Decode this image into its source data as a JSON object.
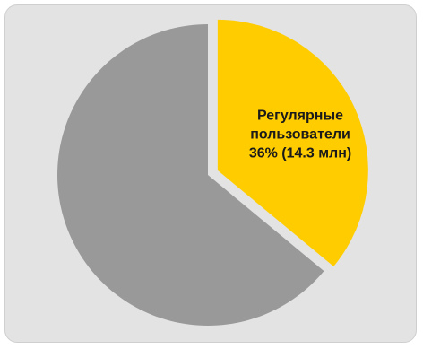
{
  "chart_data": {
    "type": "pie",
    "slices": [
      {
        "name": "Регулярные пользователи",
        "value": 36,
        "label_lines": [
          "Регулярные",
          "пользователи",
          "36%  (14.3 млн)"
        ],
        "color": "#ffcc00",
        "exploded": true
      },
      {
        "name": "",
        "value": 64,
        "label_lines": [],
        "color": "#999999",
        "exploded": false
      }
    ],
    "start_angle": "12 o'clock",
    "direction": "clockwise",
    "legend": "none"
  },
  "colors": {
    "panel_background": "#e3e3e3",
    "panel_border": "#cfcfcf",
    "label_text": "#1a1a1a"
  }
}
